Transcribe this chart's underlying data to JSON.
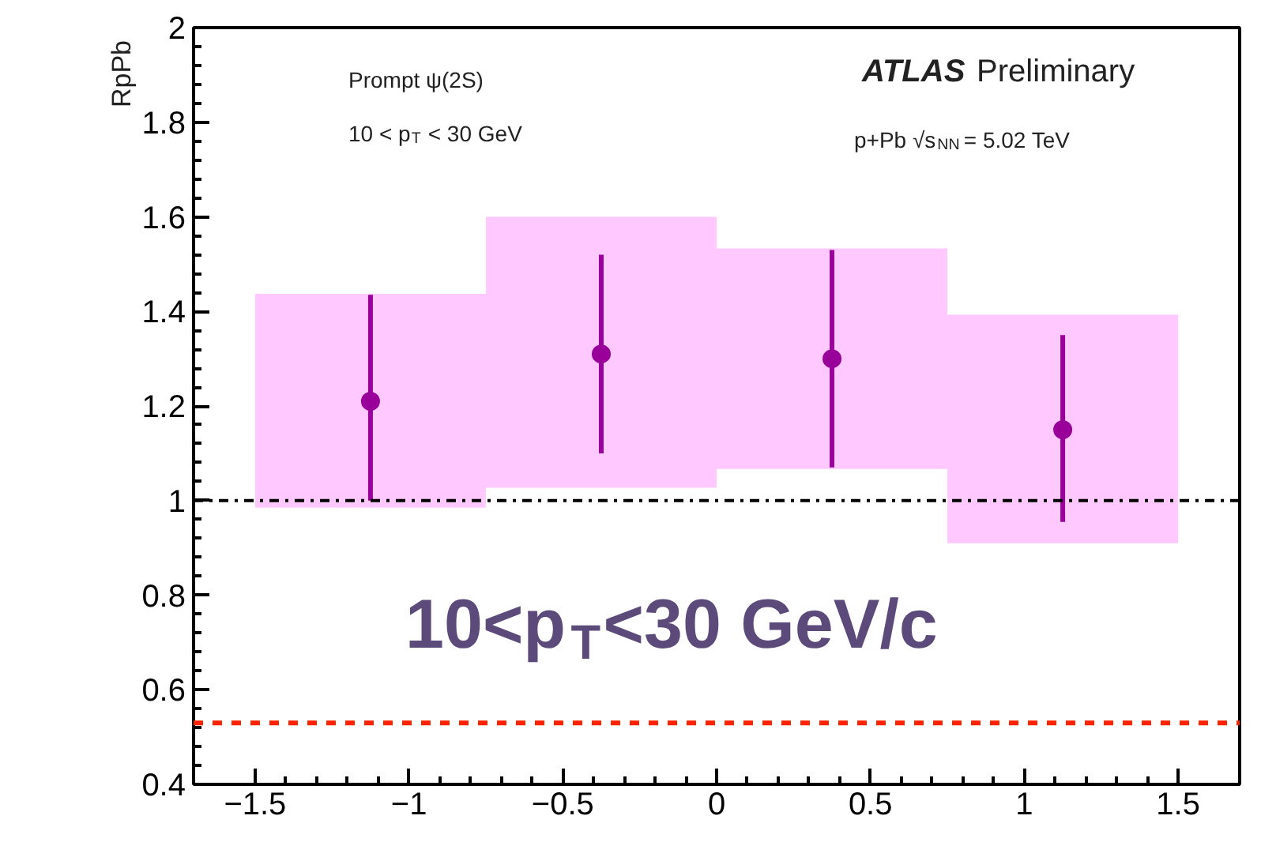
{
  "chart_data": {
    "type": "scatter",
    "ylabel": "RpPb",
    "x": [
      -1.125,
      -0.375,
      0.375,
      1.125
    ],
    "series": [
      {
        "type": "bar",
        "color": "#ffc8ff",
        "base": [
          0.985,
          1.027,
          1.067,
          0.91
        ],
        "values": [
          0.452,
          0.573,
          0.466,
          0.483
        ]
      },
      {
        "color": "#990099",
        "values": [
          1.21,
          1.31,
          1.3,
          1.15
        ],
        "errors": [
          [
            1.0,
            1.435
          ],
          [
            1.1,
            1.52
          ],
          [
            1.07,
            1.53
          ],
          [
            0.955,
            1.35
          ]
        ]
      }
    ],
    "marker": "circle",
    "grid": false,
    "xlim": [
      -1.7,
      1.7
    ],
    "ylim": [
      0.4,
      2
    ],
    "xticks": [
      -1.5,
      -1,
      -0.5,
      0,
      0.5,
      1,
      1.5
    ],
    "yticks": [
      0.4,
      0.6,
      0.8,
      1,
      1.2,
      1.4,
      1.6,
      1.8,
      2
    ],
    "ref_lines": [
      {
        "axis": "y",
        "value": 1,
        "color": "#000000",
        "line_style": "dashdot"
      },
      {
        "axis": "y",
        "value": 0.53,
        "color": "#ff2200",
        "line_style": "dashed"
      }
    ],
    "annotations": [
      "Prompt ψ(2S)",
      "10 < p$_{T}$ < 30 GeV",
      "ATLAS Preliminary",
      "p+Pb √s$_{NN}$ = 5.02 TeV",
      "10<p$_{T}$<30 GeV/c"
    ]
  }
}
